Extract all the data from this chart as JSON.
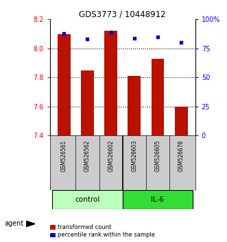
{
  "title": "GDS3773 / 10448912",
  "samples": [
    "GSM526561",
    "GSM526562",
    "GSM526602",
    "GSM526603",
    "GSM526605",
    "GSM526678"
  ],
  "red_values": [
    8.1,
    7.85,
    8.12,
    7.81,
    7.93,
    7.6
  ],
  "blue_values": [
    88,
    83,
    89,
    84,
    85,
    80
  ],
  "ylim_left": [
    7.4,
    8.2
  ],
  "ylim_right": [
    0,
    100
  ],
  "yticks_left": [
    7.4,
    7.6,
    7.8,
    8.0,
    8.2
  ],
  "yticks_right": [
    0,
    25,
    50,
    75,
    100
  ],
  "ytick_labels_right": [
    "0",
    "25",
    "50",
    "75",
    "100%"
  ],
  "groups": [
    {
      "label": "control",
      "indices": [
        0,
        1,
        2
      ],
      "color": "#bbffbb"
    },
    {
      "label": "IL-6",
      "indices": [
        3,
        4,
        5
      ],
      "color": "#33dd33"
    }
  ],
  "bar_color": "#bb1100",
  "dot_color": "#0000cc",
  "bar_width": 0.55,
  "bg_plot": "#ffffff",
  "bg_sample_row": "#cccccc",
  "agent_label": "agent",
  "legend_items": [
    {
      "color": "#bb1100",
      "label": "transformed count"
    },
    {
      "color": "#0000cc",
      "label": "percentile rank within the sample"
    }
  ]
}
